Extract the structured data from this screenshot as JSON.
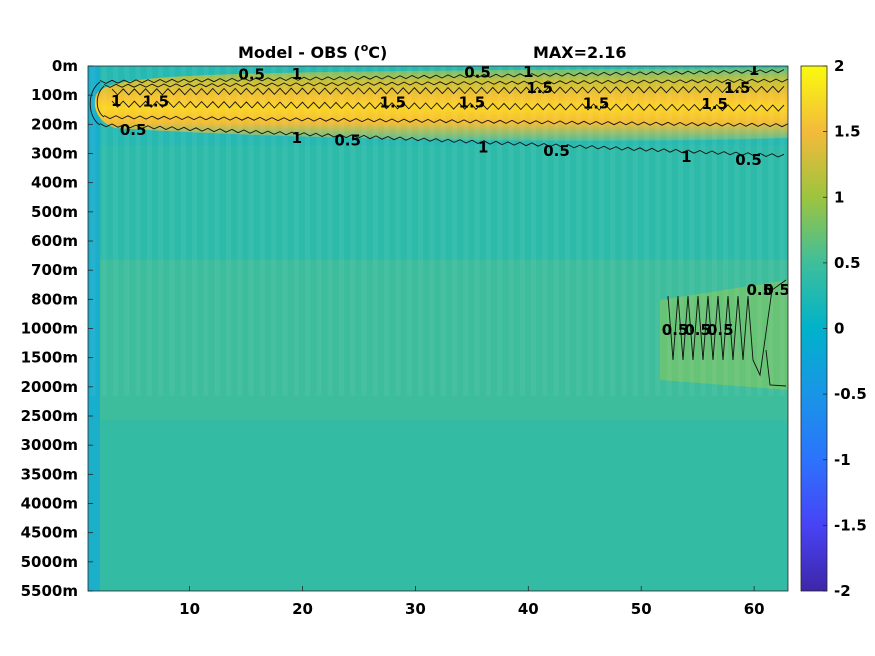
{
  "chart_data": {
    "type": "heatmap",
    "title": "Model - OBS (°C)",
    "title_parts": {
      "prefix": "Model - OBS (",
      "superscript": "o",
      "suffix": "C)"
    },
    "max_label": "MAX=2.16",
    "x_ticks": [
      10,
      20,
      30,
      40,
      50,
      60
    ],
    "x_tick_labels": [
      "10",
      "20",
      "30",
      "40",
      "50",
      "60"
    ],
    "xlim": [
      1,
      63
    ],
    "y_tick_labels": [
      "0m",
      "100m",
      "200m",
      "300m",
      "400m",
      "500m",
      "600m",
      "700m",
      "800m",
      "1000m",
      "1500m",
      "2000m",
      "2500m",
      "3000m",
      "3500m",
      "4000m",
      "4500m",
      "5000m",
      "5500m"
    ],
    "colorbar": {
      "ticks": [
        2,
        1.5,
        1,
        0.5,
        0,
        -0.5,
        -1,
        -1.5,
        -2
      ],
      "tick_labels": [
        "2",
        "1.5",
        "1",
        "0.5",
        "0",
        "-0.5",
        "-1",
        "-1.5",
        "-2"
      ],
      "range": [
        -2,
        2
      ],
      "colormap": "parula"
    },
    "field_summary": {
      "surface_warm_core": {
        "depth_levels": "100m–200m",
        "x_range": [
          2,
          63
        ],
        "max_value": 2.16
      },
      "background_value": 0.15,
      "deep_warm_patch": {
        "depth_levels": "800m–2000m",
        "x_range": [
          52,
          63
        ],
        "value": 0.6
      }
    },
    "contour_levels": [
      0.5,
      1,
      1.5
    ],
    "contour_labels": [
      {
        "text": "0.5",
        "level": "upper",
        "x": 15.5
      },
      {
        "text": "1",
        "level": "upper",
        "x": 19.5
      },
      {
        "text": "0.5",
        "level": "upper",
        "x": 35.5
      },
      {
        "text": "1",
        "level": "upper",
        "x": 40
      },
      {
        "text": "1",
        "level": "upper",
        "x": 60
      },
      {
        "text": "1.5",
        "level": "upper",
        "x": 41
      },
      {
        "text": "1.5",
        "level": "upper",
        "x": 58.5
      },
      {
        "text": "1",
        "level": "core",
        "x": 3.5
      },
      {
        "text": "1.5",
        "level": "core",
        "x": 7
      },
      {
        "text": "1.5",
        "level": "core",
        "x": 28
      },
      {
        "text": "1.5",
        "level": "core",
        "x": 35
      },
      {
        "text": "1.5",
        "level": "core",
        "x": 46
      },
      {
        "text": "1.5",
        "level": "core",
        "x": 56.5
      },
      {
        "text": "0.5",
        "level": "lower",
        "x": 5
      },
      {
        "text": "1",
        "level": "lower",
        "x": 19.5
      },
      {
        "text": "0.5",
        "level": "lower",
        "x": 24
      },
      {
        "text": "1",
        "level": "lower",
        "x": 36
      },
      {
        "text": "0.5",
        "level": "lower",
        "x": 42.5
      },
      {
        "text": "1",
        "level": "lower",
        "x": 54
      },
      {
        "text": "0.5",
        "level": "lower",
        "x": 59.5
      },
      {
        "text": "0.5",
        "level": "deep",
        "x": 60.5
      },
      {
        "text": "0.5",
        "level": "deep",
        "x": 53
      },
      {
        "text": "0.5",
        "level": "deep",
        "x": 55
      },
      {
        "text": "0.5",
        "level": "deep",
        "x": 57
      },
      {
        "text": "0.5",
        "level": "deep",
        "x": 62
      }
    ]
  }
}
